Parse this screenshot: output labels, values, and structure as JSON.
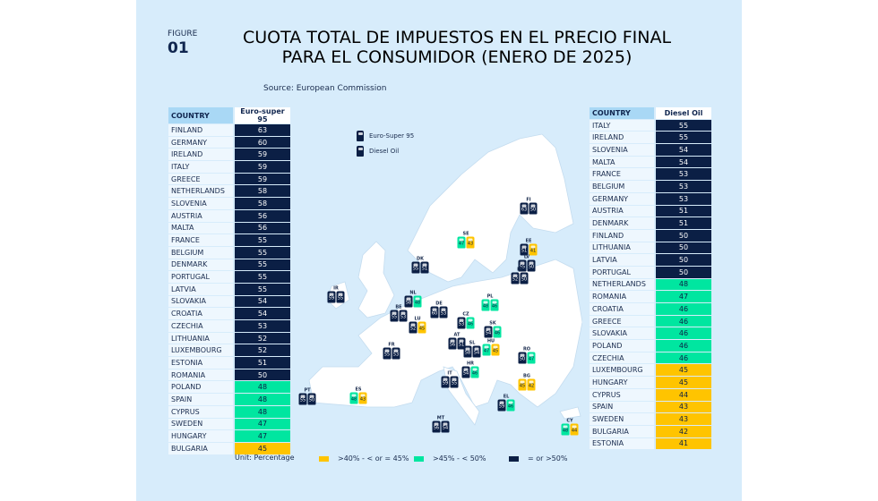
{
  "figure": {
    "label": "FIGURE",
    "number": "01"
  },
  "title": {
    "line1": "CUOTA TOTAL DE IMPUESTOS EN EL PRECIO FINAL",
    "line2_bold": "PARA EL CONSUMIDOR",
    "line2_light": "(ENERO DE 2025)"
  },
  "source": "Source: European Commission",
  "unit": "Unit: Percentage",
  "colors": {
    "navy": "#0b1f45",
    "green": "#00e6a0",
    "yellow": "#ffc400",
    "background": "#d7ecfb"
  },
  "legend": {
    "yellow": ">40% - < or = 45%",
    "green": ">45% - < 50%",
    "navy": "= or >50%"
  },
  "map_legend": {
    "petrol": "Euro-Super 95",
    "diesel": "Diesel Oil"
  },
  "chart_data": {
    "type": "table",
    "title": "CUOTA TOTAL DE IMPUESTOS EN EL PRECIO FINAL PARA EL CONSUMIDOR (ENERO DE 2025)",
    "unit": "Percentage",
    "tables": [
      {
        "headers": [
          "COUNTRY",
          "Euro-super 95"
        ],
        "rows": [
          [
            "FINLAND",
            63
          ],
          [
            "GERMANY",
            60
          ],
          [
            "IRELAND",
            59
          ],
          [
            "ITALY",
            59
          ],
          [
            "GREECE",
            59
          ],
          [
            "NETHERLANDS",
            58
          ],
          [
            "SLOVENIA",
            58
          ],
          [
            "AUSTRIA",
            56
          ],
          [
            "MALTA",
            56
          ],
          [
            "FRANCE",
            55
          ],
          [
            "BELGIUM",
            55
          ],
          [
            "DENMARK",
            55
          ],
          [
            "PORTUGAL",
            55
          ],
          [
            "LATVIA",
            55
          ],
          [
            "SLOVAKIA",
            54
          ],
          [
            "CROATIA",
            54
          ],
          [
            "CZECHIA",
            53
          ],
          [
            "LITHUANIA",
            52
          ],
          [
            "LUXEMBOURG",
            52
          ],
          [
            "ESTONIA",
            51
          ],
          [
            "ROMANIA",
            50
          ],
          [
            "POLAND",
            48
          ],
          [
            "SPAIN",
            48
          ],
          [
            "CYPRUS",
            48
          ],
          [
            "SWEDEN",
            47
          ],
          [
            "HUNGARY",
            47
          ],
          [
            "BULGARIA",
            45
          ]
        ]
      },
      {
        "headers": [
          "COUNTRY",
          "Diesel Oil"
        ],
        "rows": [
          [
            "ITALY",
            55
          ],
          [
            "IRELAND",
            55
          ],
          [
            "SLOVENIA",
            54
          ],
          [
            "MALTA",
            54
          ],
          [
            "FRANCE",
            53
          ],
          [
            "BELGIUM",
            53
          ],
          [
            "GERMANY",
            53
          ],
          [
            "AUSTRIA",
            51
          ],
          [
            "DENMARK",
            51
          ],
          [
            "FINLAND",
            50
          ],
          [
            "LITHUANIA",
            50
          ],
          [
            "LATVIA",
            50
          ],
          [
            "PORTUGAL",
            50
          ],
          [
            "NETHERLANDS",
            48
          ],
          [
            "ROMANIA",
            47
          ],
          [
            "CROATIA",
            46
          ],
          [
            "GREECE",
            46
          ],
          [
            "SLOVAKIA",
            46
          ],
          [
            "POLAND",
            46
          ],
          [
            "CZECHIA",
            46
          ],
          [
            "LUXEMBOURG",
            45
          ],
          [
            "HUNGARY",
            45
          ],
          [
            "CYPRUS",
            44
          ],
          [
            "SPAIN",
            43
          ],
          [
            "SWEDEN",
            43
          ],
          [
            "BULGARIA",
            42
          ],
          [
            "ESTONIA",
            41
          ]
        ]
      }
    ],
    "map_markers": [
      {
        "code": "FI",
        "petrol": 63,
        "diesel": 50
      },
      {
        "code": "SE",
        "petrol": 47,
        "diesel": 43
      },
      {
        "code": "EE",
        "petrol": 51,
        "diesel": 41
      },
      {
        "code": "LV",
        "petrol": 55,
        "diesel": 50
      },
      {
        "code": "LT",
        "petrol": 52,
        "diesel": 50
      },
      {
        "code": "DK",
        "petrol": 55,
        "diesel": 51
      },
      {
        "code": "IR",
        "petrol": 59,
        "diesel": 55
      },
      {
        "code": "NL",
        "petrol": 58,
        "diesel": 48
      },
      {
        "code": "BE",
        "petrol": 55,
        "diesel": 53
      },
      {
        "code": "DE",
        "petrol": 60,
        "diesel": 53
      },
      {
        "code": "LU",
        "petrol": 52,
        "diesel": 45
      },
      {
        "code": "FR",
        "petrol": 55,
        "diesel": 53
      },
      {
        "code": "PL",
        "petrol": 48,
        "diesel": 46
      },
      {
        "code": "CZ",
        "petrol": 53,
        "diesel": 46
      },
      {
        "code": "SK",
        "petrol": 54,
        "diesel": 46
      },
      {
        "code": "AT",
        "petrol": 56,
        "diesel": 51
      },
      {
        "code": "SL",
        "petrol": 58,
        "diesel": 54
      },
      {
        "code": "HU",
        "petrol": 47,
        "diesel": 45
      },
      {
        "code": "RO",
        "petrol": 50,
        "diesel": 47
      },
      {
        "code": "HR",
        "petrol": 54,
        "diesel": 46
      },
      {
        "code": "IT",
        "petrol": 59,
        "diesel": 55
      },
      {
        "code": "BG",
        "petrol": 45,
        "diesel": 42
      },
      {
        "code": "PT",
        "petrol": 55,
        "diesel": 50
      },
      {
        "code": "ES",
        "petrol": 48,
        "diesel": 43
      },
      {
        "code": "EL",
        "petrol": 59,
        "diesel": 46
      },
      {
        "code": "MT",
        "petrol": 56,
        "diesel": 54
      },
      {
        "code": "CY",
        "petrol": 48,
        "diesel": 44
      }
    ]
  }
}
